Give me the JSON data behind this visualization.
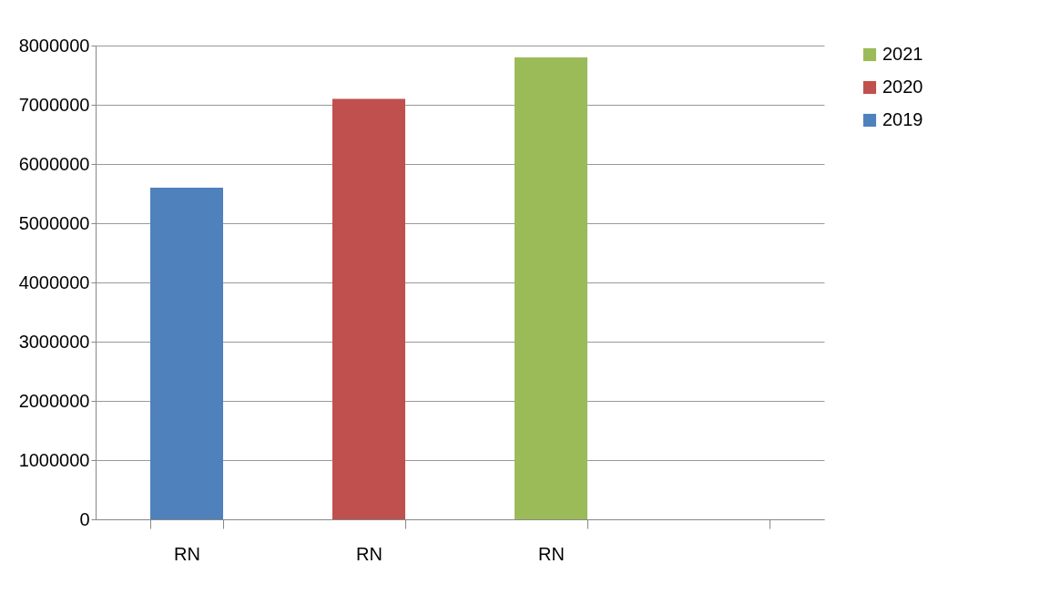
{
  "chart_data": {
    "type": "bar",
    "categories": [
      "RN",
      "RN",
      "RN",
      null
    ],
    "series": [
      {
        "name": "2019",
        "color": "#4f81bd",
        "values": [
          5600000,
          null,
          null,
          null
        ]
      },
      {
        "name": "2020",
        "color": "#c0504d",
        "values": [
          null,
          7100000,
          null,
          null
        ]
      },
      {
        "name": "2021",
        "color": "#9bbb59",
        "values": [
          null,
          null,
          7800000,
          null
        ]
      }
    ],
    "ylim": [
      0,
      8000000
    ],
    "yticks": [
      0,
      1000000,
      2000000,
      3000000,
      4000000,
      5000000,
      6000000,
      7000000,
      8000000
    ],
    "grid": "y",
    "legend": "right"
  }
}
